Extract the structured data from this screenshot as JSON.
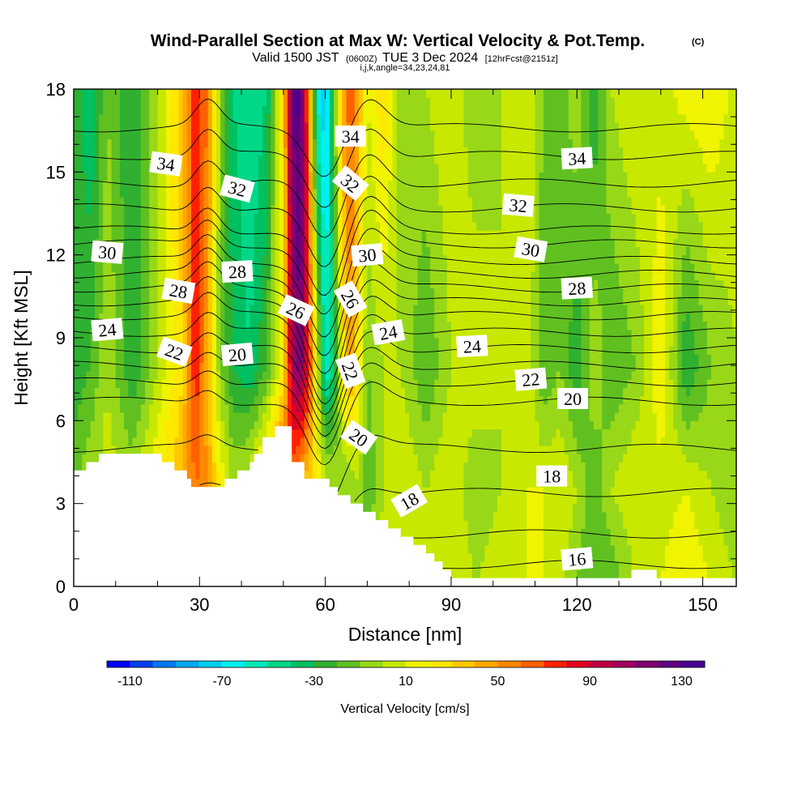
{
  "header": {
    "title": "Wind-Parallel Section at Max W: Vertical Velocity & Pot.Temp.",
    "copyright": "(C)",
    "valid_prefix": "Valid 1500 JST",
    "valid_z": "(0600Z)",
    "valid_date": "TUE 3 Dec 2024",
    "forecast": "[12hrFcst@2151z]",
    "indices": "i,j,k,angle=34,23,24,81"
  },
  "chart_data": {
    "type": "heatmap",
    "xlabel": "Distance [nm]",
    "ylabel": "Height [Kft MSL]",
    "xlim": [
      0,
      158
    ],
    "ylim": [
      0,
      18
    ],
    "x_ticks": [
      0,
      30,
      60,
      90,
      120,
      150
    ],
    "y_ticks": [
      0,
      3,
      6,
      9,
      12,
      15,
      18
    ],
    "x_tick_labels": [
      "0",
      "30",
      "60",
      "90",
      "120",
      "150"
    ],
    "y_tick_labels": [
      "0",
      "3",
      "6",
      "9",
      "12",
      "15",
      "18"
    ],
    "colorbar": {
      "label": "Vertical Velocity [cm/s]",
      "min": -120,
      "max": 140,
      "step": 10,
      "tick_values": [
        -110,
        -70,
        -30,
        10,
        50,
        90,
        130
      ],
      "tick_labels": [
        "-110",
        "-70",
        "-30",
        "10",
        "50",
        "90",
        "130"
      ],
      "colors": [
        "#0000ff",
        "#0040f0",
        "#0078f0",
        "#00a8f0",
        "#00d0f0",
        "#00f0f0",
        "#00e8b8",
        "#00d888",
        "#00c060",
        "#30b030",
        "#60c020",
        "#98d818",
        "#c8e800",
        "#f0f400",
        "#ffe800",
        "#ffc800",
        "#ffa800",
        "#ff8800",
        "#ff6000",
        "#ff2000",
        "#e00020",
        "#c00040",
        "#a00060",
        "#800070",
        "#600080",
        "#480090"
      ]
    },
    "w_field": {
      "x_nodes": [
        0,
        4,
        8,
        14,
        20,
        26,
        29,
        32,
        35,
        38,
        42,
        46,
        50,
        52,
        54,
        56,
        58,
        60,
        62,
        64,
        66,
        68,
        70,
        74,
        78,
        84,
        90,
        96,
        102,
        108,
        112,
        116,
        120,
        124,
        128,
        134,
        140,
        146,
        152,
        158
      ],
      "profile_upper": [
        -20,
        -40,
        -10,
        -30,
        0,
        40,
        80,
        60,
        -10,
        -40,
        -50,
        -40,
        30,
        120,
        135,
        60,
        -60,
        -80,
        -20,
        40,
        70,
        40,
        10,
        30,
        -10,
        0,
        10,
        -10,
        0,
        10,
        -10,
        -20,
        0,
        -30,
        0,
        10,
        5,
        15,
        20,
        5
      ],
      "profile_middle": [
        -30,
        -20,
        0,
        -30,
        0,
        30,
        80,
        40,
        -10,
        -30,
        -40,
        -20,
        20,
        100,
        120,
        80,
        10,
        -60,
        -40,
        20,
        50,
        20,
        -10,
        0,
        0,
        -20,
        0,
        10,
        0,
        10,
        -20,
        -10,
        -30,
        0,
        -20,
        -10,
        20,
        -30,
        -10,
        0
      ],
      "profile_lower": [
        -10,
        0,
        5,
        0,
        20,
        40,
        60,
        50,
        20,
        0,
        10,
        40,
        80,
        60,
        40,
        30,
        20,
        10,
        0,
        -10,
        -10,
        0,
        -20,
        0,
        10,
        0,
        10,
        -10,
        0,
        10,
        10,
        10,
        0,
        -20,
        0,
        10,
        5,
        10,
        0,
        -10
      ],
      "profile_near_ground": [
        -5,
        0,
        10,
        10,
        20,
        20,
        30,
        20,
        10,
        10,
        20,
        40,
        40,
        30,
        20,
        20,
        10,
        10,
        0,
        0,
        -10,
        0,
        0,
        10,
        10,
        5,
        10,
        0,
        10,
        10,
        10,
        0,
        -10,
        -20,
        -20,
        0,
        10,
        20,
        10,
        0
      ]
    },
    "terrain_kft": {
      "x": [
        0,
        3,
        3,
        6,
        6,
        9,
        9,
        21,
        21,
        24,
        24,
        27,
        27,
        28,
        28,
        33,
        33,
        36,
        36,
        39,
        39,
        42,
        42,
        43,
        43,
        45,
        45,
        48,
        48,
        50,
        50,
        52,
        52,
        55,
        55,
        61,
        61,
        63,
        63,
        66,
        66,
        69,
        69,
        72,
        72,
        75,
        75,
        78,
        78,
        81,
        81,
        84,
        84,
        86,
        86,
        88,
        88,
        90,
        90,
        91,
        91,
        133,
        133,
        139,
        139,
        158
      ],
      "y": [
        4.2,
        4.2,
        4.5,
        4.5,
        4.8,
        4.8,
        4.8,
        4.8,
        4.5,
        4.5,
        4.2,
        4.2,
        3.9,
        3.9,
        3.6,
        3.6,
        3.6,
        3.6,
        3.9,
        3.9,
        4.2,
        4.2,
        4.5,
        4.5,
        4.8,
        4.8,
        5.4,
        5.4,
        5.8,
        5.8,
        5.8,
        5.8,
        4.5,
        4.5,
        3.9,
        3.9,
        3.6,
        3.6,
        3.3,
        3.3,
        3.0,
        3.0,
        2.7,
        2.7,
        2.4,
        2.4,
        2.1,
        2.1,
        1.8,
        1.8,
        1.5,
        1.5,
        1.2,
        1.2,
        0.9,
        0.9,
        0.6,
        0.6,
        0.3,
        0.3,
        0.3,
        0.3,
        0.6,
        0.6,
        0.3,
        0.3
      ]
    },
    "theta_contours": {
      "base_levels": [
        16,
        17,
        18,
        19,
        20,
        21,
        22,
        23,
        24,
        25,
        26,
        27,
        28,
        29,
        30,
        31,
        32,
        33,
        34,
        35
      ],
      "base_heights_kft": [
        0.8,
        1.9,
        3.4,
        5.0,
        6.7,
        7.4,
        8.0,
        8.6,
        9.2,
        9.8,
        10.3,
        10.8,
        11.3,
        11.8,
        12.4,
        12.9,
        13.7,
        14.6,
        15.6,
        16.6
      ]
    },
    "contour_labels": [
      {
        "text": "34",
        "x": 22,
        "y": 15.3,
        "angle": 8
      },
      {
        "text": "32",
        "x": 39,
        "y": 14.4,
        "angle": 15
      },
      {
        "text": "30",
        "x": 8,
        "y": 12.1,
        "angle": 5
      },
      {
        "text": "28",
        "x": 39,
        "y": 11.4,
        "angle": -3
      },
      {
        "text": "28",
        "x": 25,
        "y": 10.7,
        "angle": 10
      },
      {
        "text": "24",
        "x": 8,
        "y": 9.3,
        "angle": -5
      },
      {
        "text": "22",
        "x": 24,
        "y": 8.5,
        "angle": 20
      },
      {
        "text": "20",
        "x": 39,
        "y": 8.4,
        "angle": -5
      },
      {
        "text": "26",
        "x": 53,
        "y": 10.0,
        "angle": 25
      },
      {
        "text": "34",
        "x": 66,
        "y": 16.3,
        "angle": 0
      },
      {
        "text": "32",
        "x": 66,
        "y": 14.6,
        "angle": 40
      },
      {
        "text": "30",
        "x": 70,
        "y": 12.0,
        "angle": -5
      },
      {
        "text": "26",
        "x": 66,
        "y": 10.4,
        "angle": 60
      },
      {
        "text": "24",
        "x": 75,
        "y": 9.2,
        "angle": -10
      },
      {
        "text": "22",
        "x": 66,
        "y": 7.8,
        "angle": 70
      },
      {
        "text": "20",
        "x": 68,
        "y": 5.4,
        "angle": 35
      },
      {
        "text": "18",
        "x": 80,
        "y": 3.1,
        "angle": -30
      },
      {
        "text": "24",
        "x": 95,
        "y": 8.7,
        "angle": -3
      },
      {
        "text": "32",
        "x": 106,
        "y": 13.8,
        "angle": 5
      },
      {
        "text": "30",
        "x": 109,
        "y": 12.2,
        "angle": 10
      },
      {
        "text": "28",
        "x": 120,
        "y": 10.8,
        "angle": -3
      },
      {
        "text": "34",
        "x": 120,
        "y": 15.5,
        "angle": -3
      },
      {
        "text": "22",
        "x": 109,
        "y": 7.5,
        "angle": -5
      },
      {
        "text": "20",
        "x": 119,
        "y": 6.8,
        "angle": 0
      },
      {
        "text": "18",
        "x": 114,
        "y": 4.0,
        "angle": 0
      },
      {
        "text": "16",
        "x": 120,
        "y": 1.0,
        "angle": -5
      }
    ]
  }
}
